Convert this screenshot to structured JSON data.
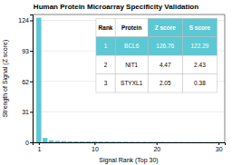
{
  "chart_data": {
    "type": "bar",
    "title": "Human Protein Microarray Specificity Validation",
    "xlabel": "Signal Rank (Top 30)",
    "ylabel": "Strength of Signal (Z score)",
    "x": [
      1,
      2,
      3,
      4,
      5,
      6,
      7,
      8,
      9,
      10,
      11,
      12,
      13,
      14,
      15,
      16,
      17,
      18,
      19,
      20,
      21,
      22,
      23,
      24,
      25,
      26,
      27,
      28,
      29,
      30
    ],
    "values": [
      126.76,
      4.47,
      2.05,
      1.5,
      1.3,
      1.1,
      1.0,
      0.95,
      0.9,
      0.85,
      0.8,
      0.75,
      0.7,
      0.65,
      0.6,
      0.55,
      0.5,
      0.48,
      0.45,
      0.42,
      0.4,
      0.38,
      0.35,
      0.33,
      0.31,
      0.29,
      0.27,
      0.25,
      0.23,
      0.21
    ],
    "color": "#5bc8d4",
    "xlim": [
      0,
      31
    ],
    "xticks": [
      1,
      10,
      20,
      30
    ],
    "ylim": [
      0,
      130
    ],
    "yticks": [
      0,
      31,
      62,
      93,
      124
    ],
    "grid": true,
    "table": {
      "columns": [
        "Rank",
        "Protein",
        "Z score",
        "S score"
      ],
      "rows": [
        [
          1,
          "BCL6",
          126.76,
          122.29
        ],
        [
          2,
          "NIT1",
          4.47,
          2.43
        ],
        [
          3,
          "STYXL1",
          2.05,
          0.38
        ]
      ]
    }
  }
}
